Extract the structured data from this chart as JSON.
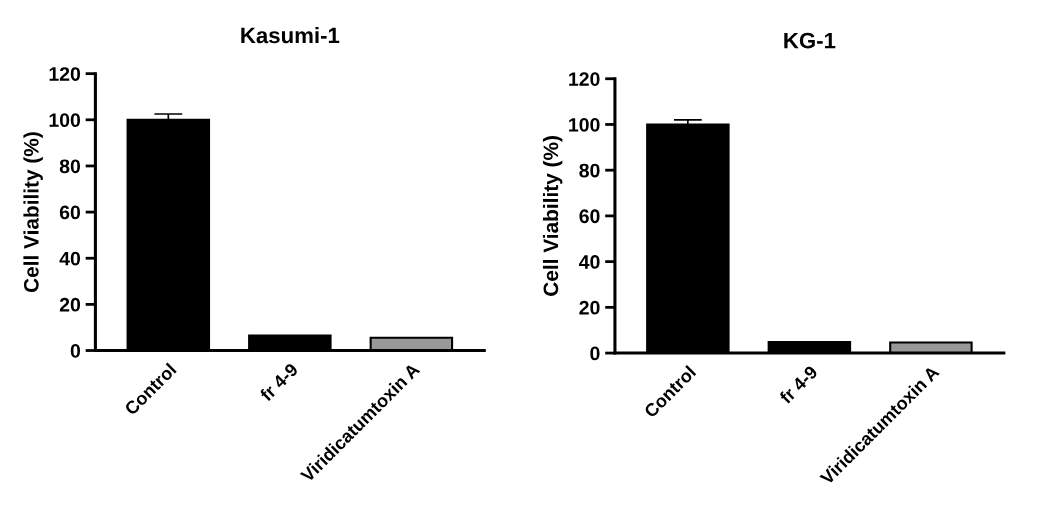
{
  "chart_data": [
    {
      "type": "bar",
      "title": "Kasumi-1",
      "ylabel": "Cell Viability (%)",
      "categories": [
        "Control",
        "fr 4-9",
        "Viridicatumtoxin A"
      ],
      "values": [
        100,
        6.5,
        5.5
      ],
      "colors": [
        "#000000",
        "#000000",
        "#999999"
      ],
      "errors": [
        2.5,
        null,
        null
      ],
      "ylim": [
        0,
        120
      ],
      "yticks": [
        0,
        20,
        40,
        60,
        80,
        100,
        120
      ],
      "grid": false
    },
    {
      "type": "bar",
      "title": "KG-1",
      "ylabel": "Cell Viability (%)",
      "categories": [
        "Control",
        "fr 4-9",
        "Viridicatumtoxin A"
      ],
      "values": [
        100,
        4.8,
        4.6
      ],
      "colors": [
        "#000000",
        "#000000",
        "#999999"
      ],
      "errors": [
        2,
        null,
        null
      ],
      "ylim": [
        0,
        120
      ],
      "yticks": [
        0,
        20,
        40,
        60,
        80,
        100,
        120
      ],
      "grid": false
    }
  ]
}
